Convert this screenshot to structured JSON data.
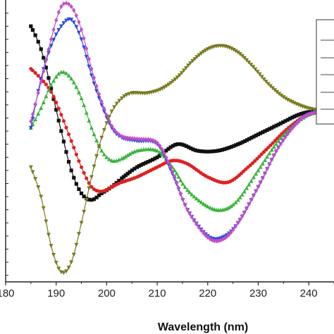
{
  "chart_data": {
    "type": "line",
    "title": "",
    "xlabel": "Wavelength (nm)",
    "ylabel": "",
    "xlim": [
      180,
      245
    ],
    "ylim": [
      -3.3,
      1.0
    ],
    "x_ticks": [
      180,
      190,
      200,
      210,
      220,
      230,
      240
    ],
    "x_tick_labels": [
      "180",
      "190",
      "200",
      "210",
      "220",
      "230",
      "240"
    ],
    "grid": false,
    "legend_position": "top-right",
    "colors": {
      "black": "#111111",
      "red": "#e02020",
      "green": "#3cb43c",
      "blue": "#2b4bd8",
      "magenta": "#c04ec8",
      "olive": "#7a7a20",
      "axis": "#222222"
    },
    "series": [
      {
        "color": "black",
        "marker": "square",
        "x": [
          185,
          187,
          189,
          191,
          193,
          195,
          197,
          199,
          201,
          203,
          206,
          210,
          214,
          218,
          222,
          226,
          230,
          234,
          238,
          241,
          245
        ],
        "y": [
          0.6,
          0.25,
          -0.35,
          -1.0,
          -1.6,
          -1.95,
          -2.05,
          -1.95,
          -1.85,
          -1.72,
          -1.55,
          -1.4,
          -1.2,
          -1.3,
          -1.3,
          -1.2,
          -1.05,
          -0.9,
          -0.75,
          -0.7,
          -0.7
        ]
      },
      {
        "color": "red",
        "marker": "circle",
        "x": [
          185,
          187,
          189,
          191,
          193,
          195,
          197,
          199,
          201,
          203,
          206,
          210,
          213,
          216,
          220,
          224,
          228,
          232,
          236,
          240,
          245
        ],
        "y": [
          -0.05,
          -0.2,
          -0.4,
          -0.75,
          -1.15,
          -1.55,
          -1.85,
          -1.92,
          -1.85,
          -1.78,
          -1.7,
          -1.55,
          -1.45,
          -1.5,
          -1.7,
          -1.78,
          -1.55,
          -1.25,
          -0.95,
          -0.75,
          -0.7
        ]
      },
      {
        "color": "green",
        "marker": "triangle-up",
        "x": [
          185,
          187,
          189,
          191,
          193,
          195,
          197,
          199,
          201,
          203,
          206,
          210,
          213,
          216,
          220,
          223,
          226,
          230,
          234,
          238,
          241,
          245
        ],
        "y": [
          -0.95,
          -0.65,
          -0.3,
          -0.1,
          -0.2,
          -0.5,
          -0.95,
          -1.3,
          -1.45,
          -1.42,
          -1.3,
          -1.3,
          -1.55,
          -1.9,
          -2.15,
          -2.2,
          -2.05,
          -1.6,
          -1.15,
          -0.85,
          -0.72,
          -0.7
        ]
      },
      {
        "color": "blue",
        "marker": "triangle-down",
        "x": [
          185,
          187,
          189,
          191,
          193,
          195,
          197,
          199,
          201,
          203,
          206,
          210,
          213,
          216,
          220,
          223,
          226,
          230,
          234,
          238,
          241,
          245
        ],
        "y": [
          -0.95,
          -0.2,
          0.3,
          0.6,
          0.7,
          0.4,
          -0.15,
          -0.6,
          -0.95,
          -1.1,
          -1.15,
          -1.2,
          -1.65,
          -2.2,
          -2.6,
          -2.62,
          -2.4,
          -1.85,
          -1.25,
          -0.85,
          -0.72,
          -0.7
        ]
      },
      {
        "color": "magenta",
        "marker": "diamond",
        "x": [
          185,
          187,
          189,
          191,
          193,
          195,
          197,
          199,
          201,
          203,
          206,
          210,
          213,
          216,
          220,
          223,
          226,
          230,
          234,
          238,
          241,
          245
        ],
        "y": [
          -0.85,
          -0.25,
          0.4,
          0.9,
          0.9,
          0.55,
          -0.05,
          -0.55,
          -0.92,
          -1.08,
          -1.12,
          -1.18,
          -1.62,
          -2.2,
          -2.62,
          -2.65,
          -2.4,
          -1.85,
          -1.25,
          -0.85,
          -0.72,
          -0.7
        ]
      },
      {
        "color": "olive",
        "marker": "triangle-down",
        "x": [
          185,
          187,
          189,
          191,
          193,
          195,
          197,
          199,
          201,
          203,
          205,
          208,
          211,
          214,
          217,
          220,
          223,
          226,
          229,
          232,
          235,
          238,
          241,
          245
        ],
        "y": [
          -1.55,
          -2.0,
          -2.75,
          -3.15,
          -3.0,
          -2.4,
          -1.7,
          -1.1,
          -0.7,
          -0.5,
          -0.42,
          -0.42,
          -0.35,
          -0.18,
          0.07,
          0.25,
          0.3,
          0.2,
          -0.02,
          -0.28,
          -0.48,
          -0.6,
          -0.67,
          -0.7
        ]
      }
    ]
  }
}
